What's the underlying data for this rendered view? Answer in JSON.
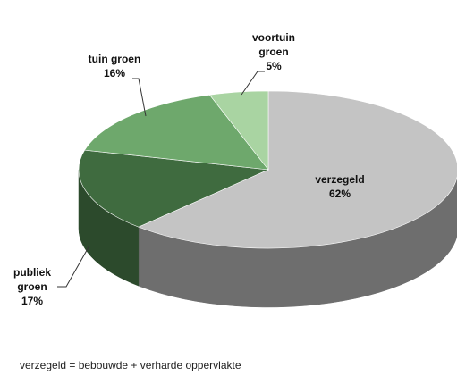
{
  "chart_data": {
    "type": "pie",
    "style": "3d",
    "categories": [
      "verzegeld",
      "publiek groen",
      "tuin groen",
      "voortuin groen"
    ],
    "values": [
      62,
      17,
      16,
      5
    ],
    "value_labels": [
      "62%",
      "17%",
      "16%",
      "5%"
    ],
    "colors": [
      "#c4c4c4",
      "#3f6b3f",
      "#6ea86c",
      "#a9d4a2"
    ],
    "side_colors": [
      "#6e6e6e",
      "#2c4a2c",
      "#4f7f4e",
      "#7fae79"
    ],
    "start_angle": -90,
    "footnote": "verzegeld = bebouwde + verharde oppervlakte"
  }
}
